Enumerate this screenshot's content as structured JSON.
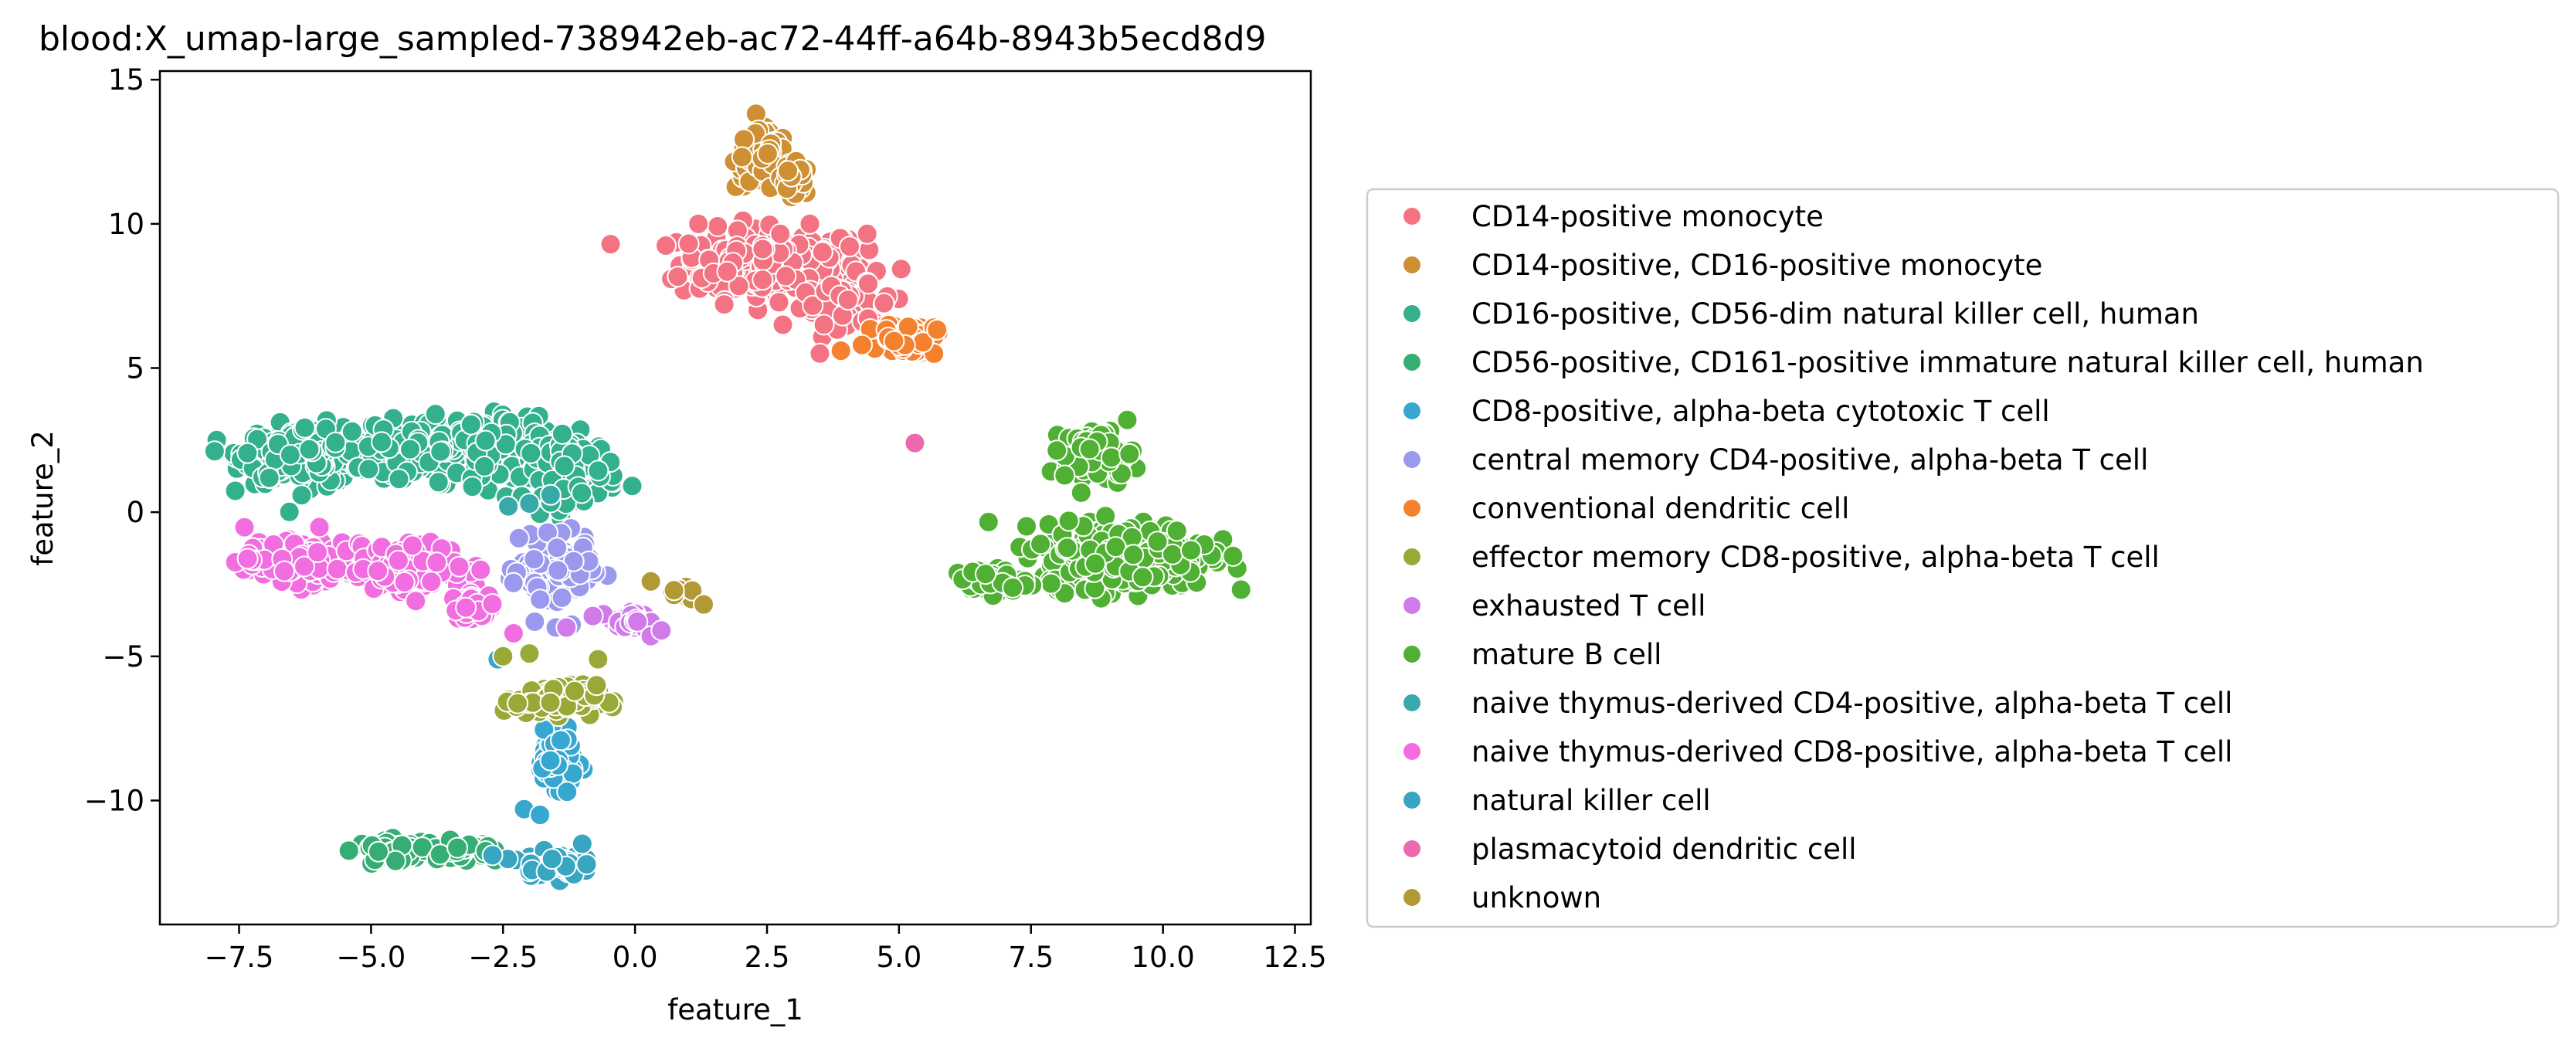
{
  "chart_data": {
    "type": "scatter",
    "title": "blood:X_umap-large_sampled-738942eb-ac72-44ff-a64b-8943b5ecd8d9",
    "xlabel": "feature_1",
    "ylabel": "feature_2",
    "xlim": [
      -9.0,
      12.8
    ],
    "ylim": [
      -14.3,
      15.3
    ],
    "xticks": [
      -7.5,
      -5.0,
      -2.5,
      0.0,
      2.5,
      5.0,
      7.5,
      10.0,
      12.5
    ],
    "xtick_labels": [
      "−7.5",
      "−5.0",
      "−2.5",
      "0.0",
      "2.5",
      "5.0",
      "7.5",
      "10.0",
      "12.5"
    ],
    "yticks": [
      15,
      10,
      5,
      0,
      -5,
      -10
    ],
    "ytick_labels": [
      "15",
      "10",
      "5",
      "0",
      "−5",
      "−10"
    ],
    "grid": false,
    "legend_position": "right, outside plot",
    "series": [
      {
        "name": "CD14-positive monocyte",
        "color": "#f37383",
        "clusters": [
          {
            "cx": 2.6,
            "cy": 8.6,
            "sx": 1.6,
            "sy": 1.1,
            "n": 240
          },
          {
            "cx": 4.0,
            "cy": 7.2,
            "sx": 0.8,
            "sy": 0.6,
            "n": 60
          }
        ],
        "points": [
          [
            2.8,
            6.5
          ],
          [
            3.5,
            5.5
          ],
          [
            5.3,
            2.4
          ],
          [
            1.2,
            10.0
          ]
        ]
      },
      {
        "name": "CD14-positive, CD16-positive monocyte",
        "color": "#ce9032",
        "clusters": [
          {
            "cx": 2.4,
            "cy": 12.2,
            "sx": 0.45,
            "sy": 0.9,
            "n": 110
          },
          {
            "cx": 3.0,
            "cy": 11.5,
            "sx": 0.3,
            "sy": 0.5,
            "n": 30
          }
        ],
        "points": []
      },
      {
        "name": "CD16-positive, CD56-dim natural killer cell, human",
        "color": "#33b08d",
        "clusters": [
          {
            "cx": -6.2,
            "cy": 2.0,
            "sx": 1.1,
            "sy": 0.9,
            "n": 250
          },
          {
            "cx": -3.2,
            "cy": 2.2,
            "sx": 1.5,
            "sy": 1.0,
            "n": 300
          },
          {
            "cx": -1.2,
            "cy": 1.5,
            "sx": 0.8,
            "sy": 1.0,
            "n": 120
          }
        ],
        "points": []
      },
      {
        "name": "CD56-positive, CD161-positive immature natural killer cell, human",
        "color": "#36ad73",
        "clusters": [
          {
            "cx": -4.5,
            "cy": -11.7,
            "sx": 0.7,
            "sy": 0.3,
            "n": 60
          },
          {
            "cx": -3.2,
            "cy": -11.8,
            "sx": 0.5,
            "sy": 0.35,
            "n": 30
          }
        ],
        "points": []
      },
      {
        "name": "CD8-positive, alpha-beta cytotoxic T cell",
        "color": "#38a7d0",
        "clusters": [
          {
            "cx": -1.5,
            "cy": -8.6,
            "sx": 0.35,
            "sy": 0.8,
            "n": 70
          }
        ],
        "points": [
          [
            -2.1,
            -10.3
          ],
          [
            -1.8,
            -10.5
          ],
          [
            -2.6,
            -5.1
          ]
        ]
      },
      {
        "name": "central memory CD4-positive, alpha-beta T cell",
        "color": "#9b99ee",
        "clusters": [
          {
            "cx": -1.5,
            "cy": -2.0,
            "sx": 0.6,
            "sy": 0.9,
            "n": 120
          }
        ],
        "points": [
          [
            -2.2,
            -0.9
          ],
          [
            -1.9,
            -3.8
          ],
          [
            -1.2,
            -3.9
          ],
          [
            -1.5,
            -4.0
          ]
        ]
      },
      {
        "name": "conventional dendritic cell",
        "color": "#f5802e",
        "clusters": [
          {
            "cx": 5.2,
            "cy": 6.0,
            "sx": 0.45,
            "sy": 0.5,
            "n": 60
          }
        ],
        "points": [
          [
            3.9,
            5.6
          ],
          [
            4.3,
            5.8
          ]
        ]
      },
      {
        "name": "effector memory CD8-positive, alpha-beta T cell",
        "color": "#9aa838",
        "clusters": [
          {
            "cx": -1.5,
            "cy": -6.5,
            "sx": 0.7,
            "sy": 0.45,
            "n": 110
          }
        ],
        "points": [
          [
            -2.5,
            -5.0
          ],
          [
            -2.0,
            -4.9
          ],
          [
            -0.7,
            -5.1
          ]
        ]
      },
      {
        "name": "exhausted T cell",
        "color": "#d07be9",
        "clusters": [
          {
            "cx": -0.1,
            "cy": -3.8,
            "sx": 0.35,
            "sy": 0.3,
            "n": 30
          }
        ],
        "points": [
          [
            -1.3,
            -4.0
          ],
          [
            0.3,
            -4.3
          ],
          [
            0.5,
            -4.1
          ],
          [
            -0.8,
            -3.6
          ]
        ]
      },
      {
        "name": "mature B cell",
        "color": "#50b033",
        "clusters": [
          {
            "cx": 9.3,
            "cy": -1.5,
            "sx": 1.4,
            "sy": 1.0,
            "n": 380
          },
          {
            "cx": 8.8,
            "cy": 2.0,
            "sx": 0.6,
            "sy": 0.8,
            "n": 80
          },
          {
            "cx": 6.7,
            "cy": -2.4,
            "sx": 0.6,
            "sy": 0.4,
            "n": 60
          }
        ],
        "points": []
      },
      {
        "name": "naive thymus-derived CD4-positive, alpha-beta T cell",
        "color": "#38a9a8",
        "clusters": [],
        "points": [
          [
            -2.4,
            0.2
          ],
          [
            -1.6,
            0.6
          ],
          [
            -2.0,
            0.3
          ]
        ]
      },
      {
        "name": "naive thymus-derived CD8-positive, alpha-beta T cell",
        "color": "#f26ee0",
        "clusters": [
          {
            "cx": -6.2,
            "cy": -1.7,
            "sx": 1.1,
            "sy": 0.6,
            "n": 220
          },
          {
            "cx": -4.2,
            "cy": -1.9,
            "sx": 0.9,
            "sy": 0.7,
            "n": 150
          },
          {
            "cx": -3.0,
            "cy": -3.3,
            "sx": 0.4,
            "sy": 0.4,
            "n": 35
          }
        ],
        "points": [
          [
            -2.3,
            -4.2
          ]
        ]
      },
      {
        "name": "natural killer cell",
        "color": "#39a6c1",
        "clusters": [
          {
            "cx": -1.6,
            "cy": -12.2,
            "sx": 0.5,
            "sy": 0.35,
            "n": 70
          }
        ],
        "points": [
          [
            -2.7,
            -11.9
          ],
          [
            -1.0,
            -11.5
          ]
        ]
      },
      {
        "name": "plasmacytoid dendritic cell",
        "color": "#ec69ad",
        "clusters": [],
        "points": [
          [
            5.3,
            2.4
          ]
        ]
      },
      {
        "name": "unknown",
        "color": "#b19a35",
        "clusters": [
          {
            "cx": 0.9,
            "cy": -2.8,
            "sx": 0.3,
            "sy": 0.25,
            "n": 12
          }
        ],
        "points": [
          [
            0.3,
            -2.4
          ],
          [
            1.3,
            -3.2
          ]
        ]
      }
    ]
  }
}
